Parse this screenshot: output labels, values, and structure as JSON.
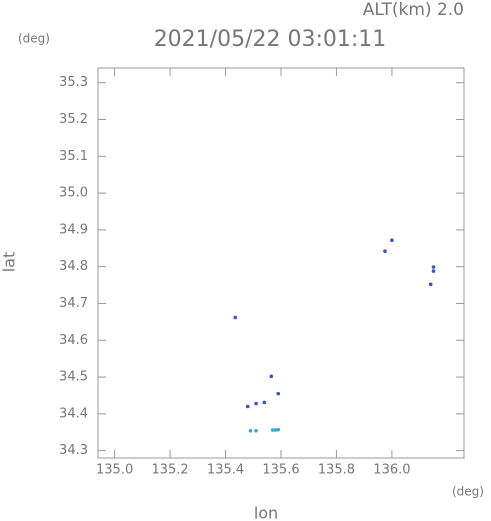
{
  "chart_data": {
    "type": "scatter",
    "title": "2021/05/22 03:01:11",
    "annotation": "ALT(km) 2.0",
    "xlabel": "lon",
    "xunit": "(deg)",
    "ylabel": "lat",
    "yunit": "(deg)",
    "xlim": [
      134.94,
      136.26
    ],
    "ylim": [
      34.28,
      35.34
    ],
    "xticks": [
      {
        "value": 135.0,
        "label": "135.0"
      },
      135.2,
      135.4,
      135.6,
      135.8,
      {
        "value": 136.0,
        "label": "136.0"
      }
    ],
    "yticks": [
      34.3,
      34.4,
      34.5,
      34.6,
      34.7,
      34.8,
      34.9,
      {
        "value": 35.0,
        "label": "35.0"
      },
      35.1,
      35.2,
      35.3
    ],
    "series": [
      {
        "color": "#3a4fc8",
        "x": [
          135.435,
          135.975,
          136.0,
          136.14,
          136.15,
          136.15,
          135.48,
          135.51,
          135.54,
          135.565,
          135.59
        ],
        "y": [
          34.662,
          34.842,
          34.872,
          34.752,
          34.788,
          34.799,
          34.42,
          34.428,
          34.431,
          34.502,
          34.455
        ]
      },
      {
        "color": "#3aa6c8",
        "x": [
          135.49,
          135.51,
          135.57,
          135.58,
          135.59
        ],
        "y": [
          34.354,
          34.354,
          34.356,
          34.356,
          34.357
        ]
      }
    ]
  }
}
